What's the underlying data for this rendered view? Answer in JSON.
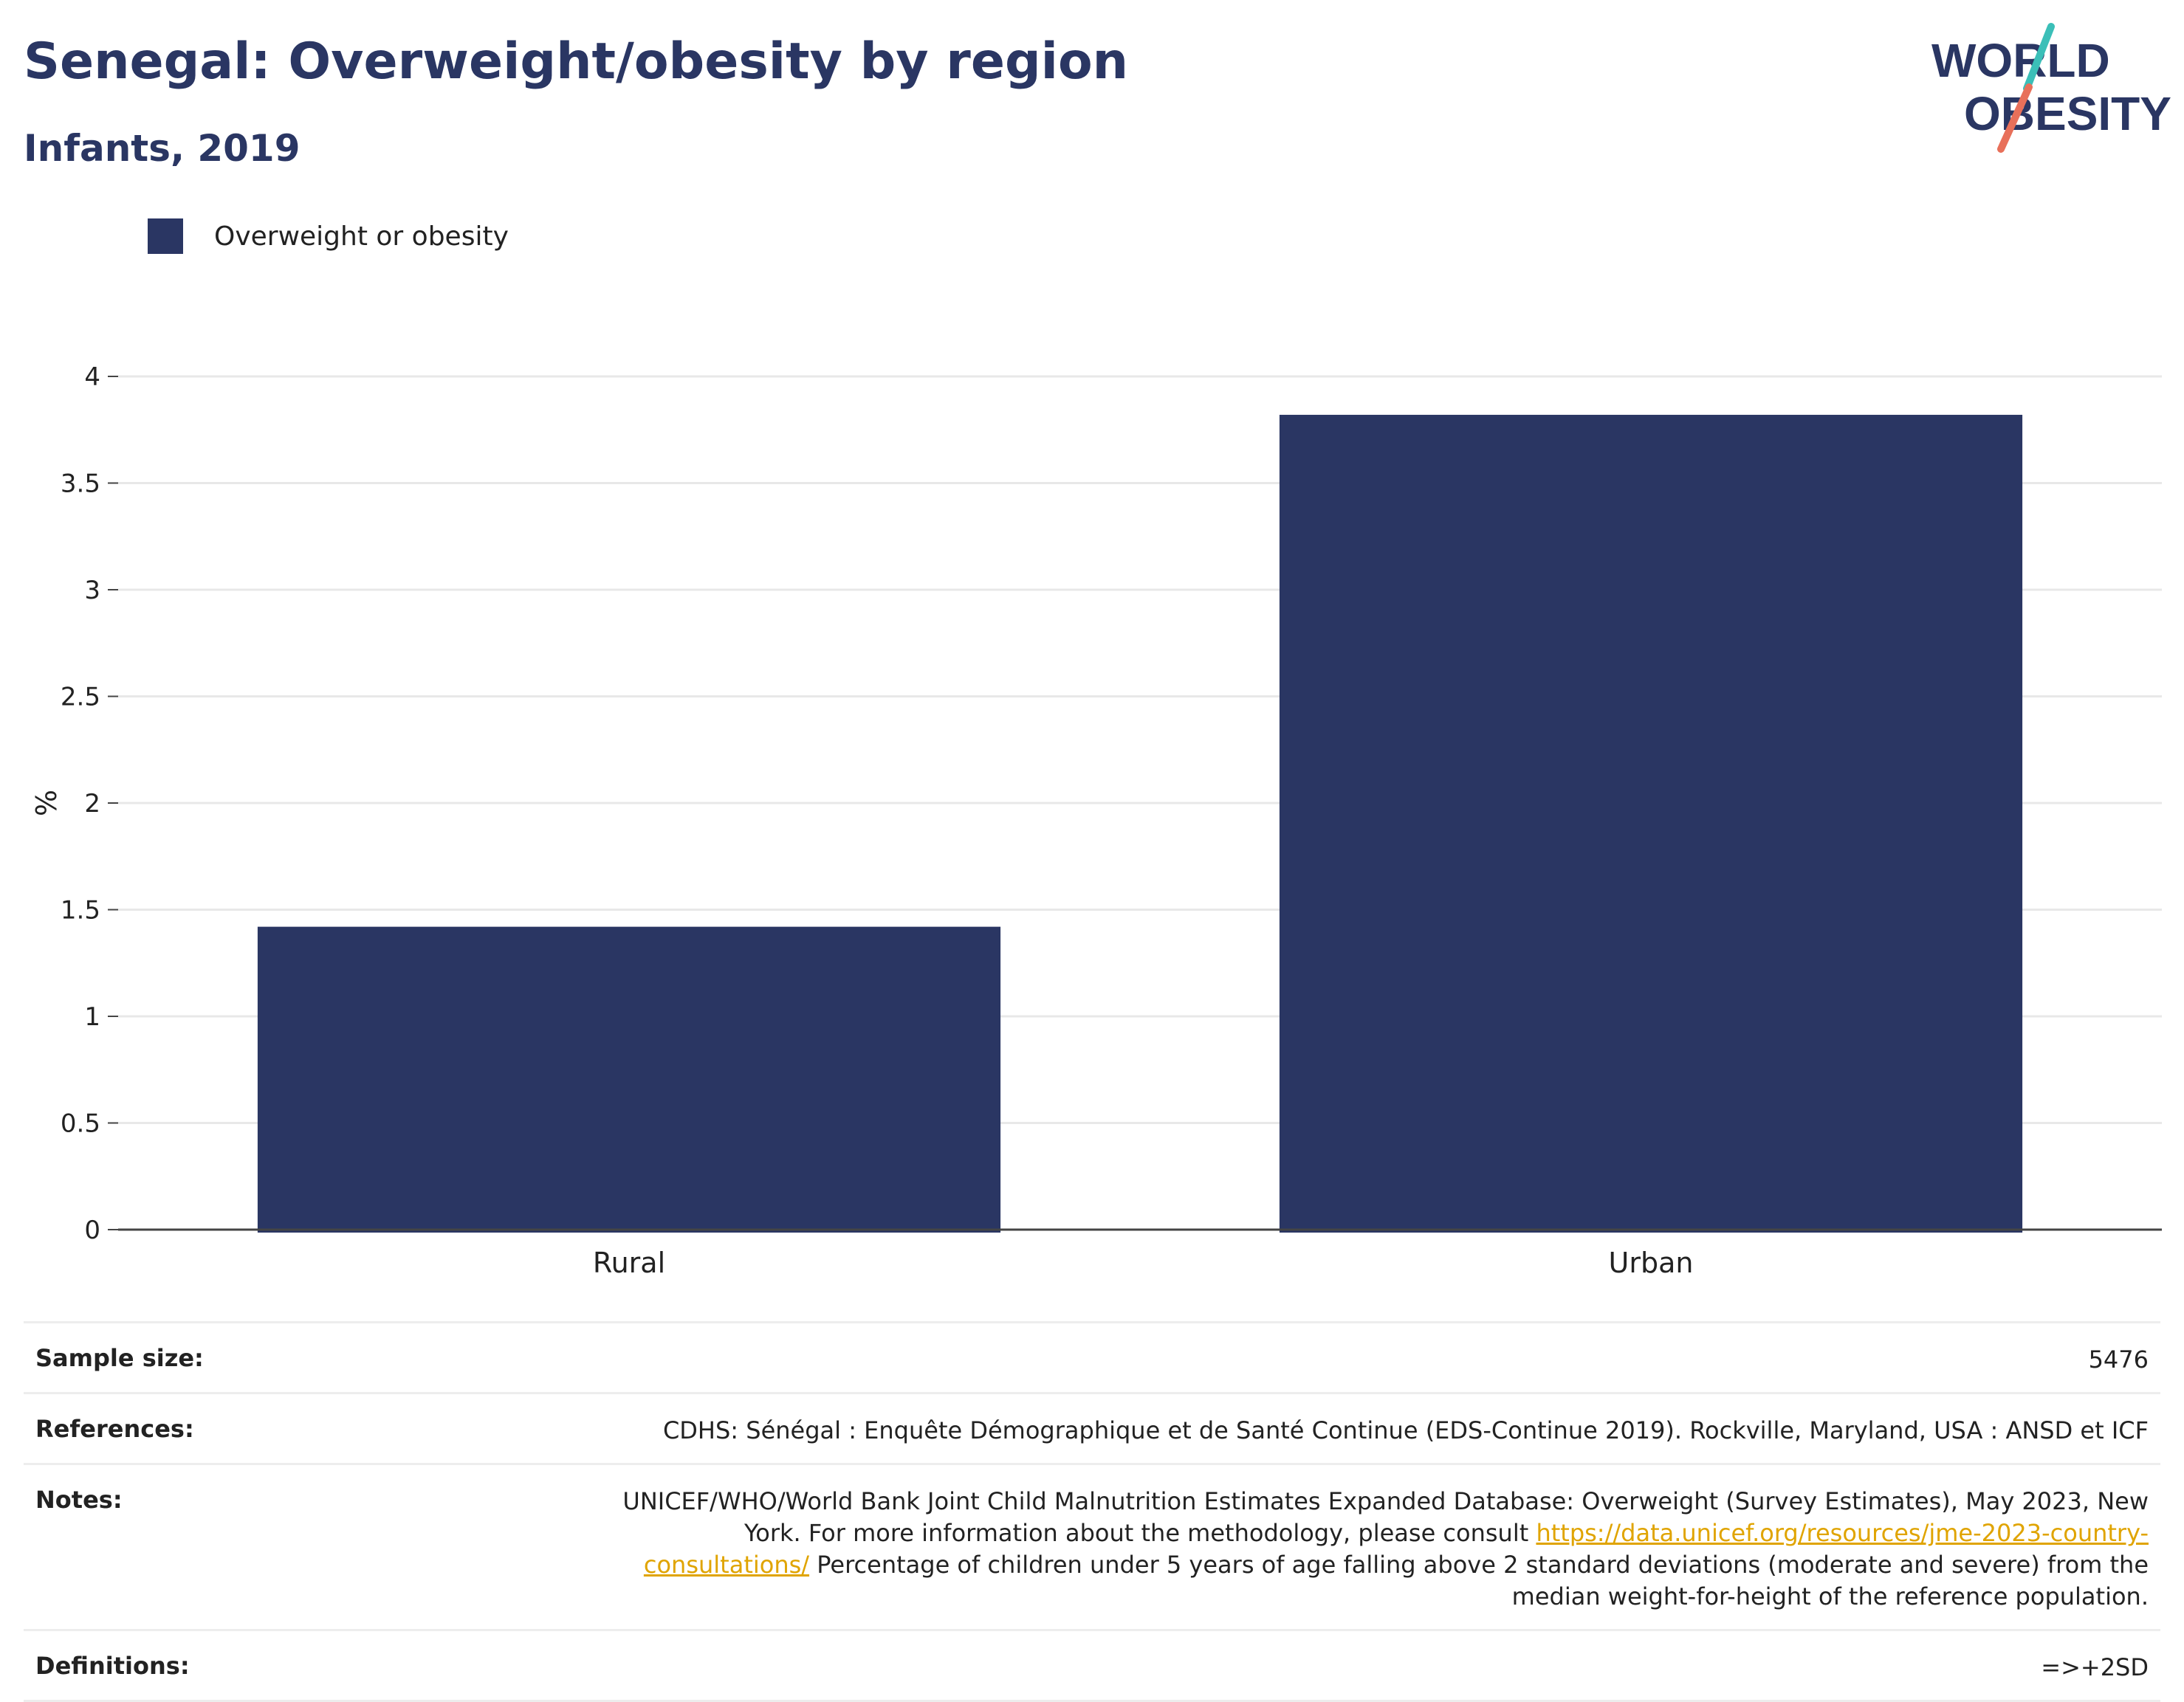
{
  "header": {
    "title": "Senegal: Overweight/obesity by region",
    "subtitle": "Infants, 2019"
  },
  "logo": {
    "line1": "WORLD",
    "line2": "OBESITY"
  },
  "colors": {
    "bar": "#2a3663",
    "title": "#2a3663",
    "link": "#e0a400",
    "logo_teal": "#3bbfb8",
    "logo_coral": "#e8705a"
  },
  "chart_data": {
    "type": "bar",
    "categories": [
      "Rural",
      "Urban"
    ],
    "series": [
      {
        "name": "Overweight or obesity",
        "values": [
          1.42,
          3.82
        ]
      }
    ],
    "ylabel": "%",
    "xlabel": "",
    "ylim": [
      0,
      4
    ],
    "yticks": [
      0,
      0.5,
      1,
      1.5,
      2,
      2.5,
      3,
      3.5,
      4
    ],
    "ytick_labels": [
      "0",
      "0.5",
      "1",
      "1.5",
      "2",
      "2.5",
      "3",
      "3.5",
      "4"
    ],
    "grid": true,
    "legend_position": "top-left"
  },
  "meta": {
    "sample_size_label": "Sample size:",
    "sample_size_value": "5476",
    "references_label": "References:",
    "references_value": "CDHS: Sénégal : Enquête Démographique et de Santé Continue (EDS-Continue 2019). Rockville, Maryland, USA : ANSD et ICF",
    "notes_label": "Notes:",
    "notes_value_before": "UNICEF/WHO/World Bank Joint Child Malnutrition Estimates Expanded Database: Overweight (Survey Estimates), May 2023, New York. For more information about the methodology, please consult ",
    "notes_link": "https://data.unicef.org/resources/jme-2023-country-consultations/",
    "notes_value_after": " Percentage of children under 5 years of age falling above 2 standard deviations (moderate and severe) from the median weight-for-height of the reference population.",
    "definitions_label": "Definitions:",
    "definitions_value": "=>+2SD"
  }
}
